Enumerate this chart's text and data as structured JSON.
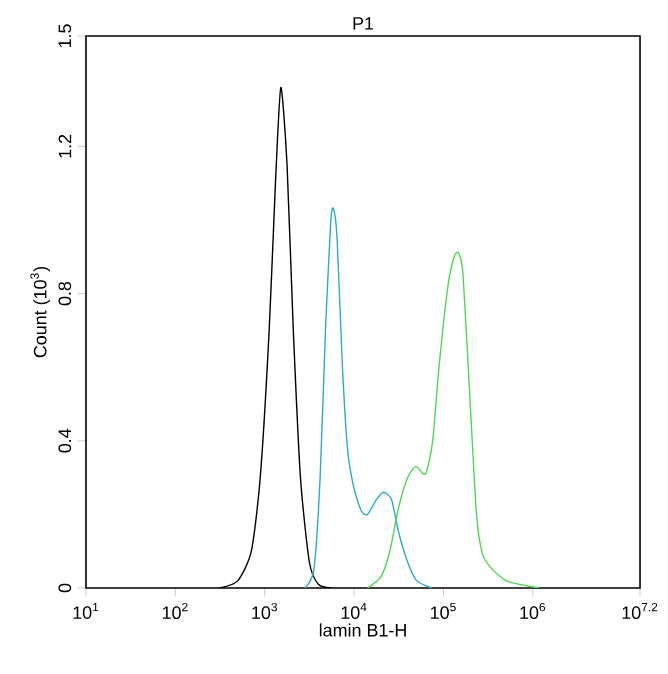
{
  "chart_data": {
    "type": "line",
    "title": "P1",
    "xlabel": "lamin B1-H",
    "ylabel": "Count (10$^{3}$)",
    "log": "x",
    "xlim": [
      10,
      15848932
    ],
    "ylim": [
      0,
      1.5
    ],
    "xticks": [
      {
        "value": 10,
        "label": "10$^{1}$"
      },
      {
        "value": 100,
        "label": "10$^{2}$"
      },
      {
        "value": 1000,
        "label": "10$^{3}$"
      },
      {
        "value": 10000,
        "label": "10$^{4}$"
      },
      {
        "value": 100000,
        "label": "10$^{5}$"
      },
      {
        "value": 1000000,
        "label": "10$^{6}$"
      },
      {
        "value": 15848932,
        "label": "10$^{7.2}$"
      }
    ],
    "yticks": [
      0,
      0.4,
      0.8,
      1.2,
      1.5
    ],
    "grid": false,
    "marker": "none",
    "line_style": "solid",
    "series": [
      {
        "color": "#000000",
        "x": [
          316,
          501,
          708,
          891,
          1122,
          1318,
          1514,
          1778,
          2089,
          2512,
          3162,
          3981,
          5623
        ],
        "values": [
          0,
          0.02,
          0.1,
          0.3,
          0.7,
          1.1,
          1.36,
          1.15,
          0.7,
          0.3,
          0.07,
          0.01,
          0
        ]
      },
      {
        "color": "#29a9d6",
        "x": [
          2818,
          3548,
          4169,
          4786,
          5495,
          5888,
          6457,
          7413,
          8511,
          10000,
          12023,
          14125,
          17783,
          21380,
          26303,
          31623,
          39811,
          50119,
          74131
        ],
        "values": [
          0,
          0.05,
          0.3,
          0.7,
          1.0,
          1.03,
          0.95,
          0.6,
          0.37,
          0.27,
          0.21,
          0.2,
          0.24,
          0.26,
          0.24,
          0.15,
          0.07,
          0.02,
          0
        ]
      },
      {
        "color": "#4cd94c",
        "x": [
          14125,
          19953,
          25119,
          31623,
          39811,
          48978,
          63096,
          75858,
          89125,
          112202,
          131826,
          147911,
          165959,
          199526,
          234423,
          275423,
          354813,
          501187,
          707946,
          1174898
        ],
        "values": [
          0,
          0.03,
          0.1,
          0.22,
          0.3,
          0.33,
          0.31,
          0.4,
          0.6,
          0.82,
          0.9,
          0.91,
          0.85,
          0.5,
          0.2,
          0.09,
          0.05,
          0.02,
          0.01,
          0
        ]
      }
    ]
  }
}
